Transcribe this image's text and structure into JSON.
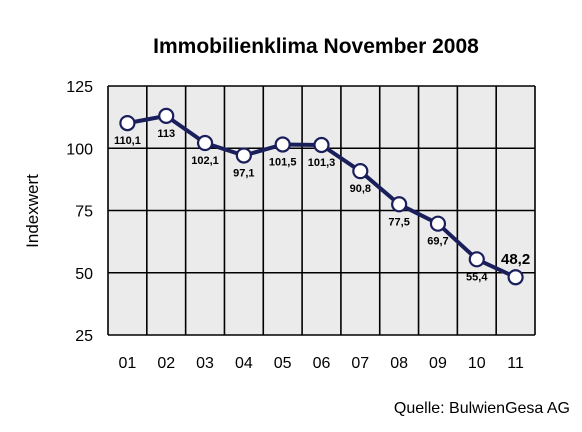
{
  "chart_data": {
    "type": "line",
    "title": "Immobilienklima November 2008",
    "xlabel": "",
    "ylabel": "Indexwert",
    "categories": [
      "01",
      "02",
      "03",
      "04",
      "05",
      "06",
      "07",
      "08",
      "09",
      "10",
      "11"
    ],
    "series": [
      {
        "values": [
          110.1,
          113,
          102.1,
          97.1,
          101.5,
          101.3,
          90.8,
          77.5,
          69.7,
          55.4,
          48.2
        ]
      }
    ],
    "data_labels": [
      "110,1",
      "113",
      "102,1",
      "97,1",
      "101,5",
      "101,3",
      "90,8",
      "77,5",
      "69,7",
      "55,4",
      "48,2"
    ],
    "yticks": [
      "25",
      "50",
      "75",
      "100",
      "125"
    ],
    "ylim": [
      25,
      125
    ],
    "grid": true,
    "colors": {
      "line": "#1a1f5c",
      "marker_fill": "#ffffff",
      "plot_background": "#ebebeb",
      "grid": "#000000"
    }
  },
  "source": "Quelle: BulwienGesa AG"
}
